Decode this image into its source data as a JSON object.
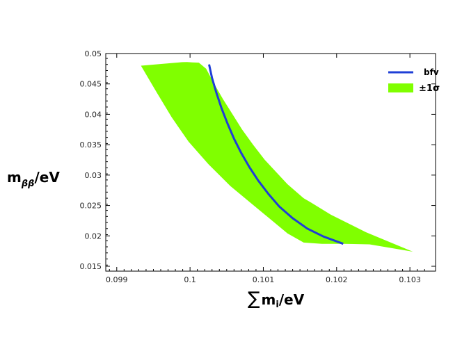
{
  "chart_data": {
    "type": "area",
    "title": "",
    "xlabel": {
      "prefix": "∑",
      "main": "m",
      "subscript": "i",
      "suffix": "/eV"
    },
    "ylabel": {
      "main": "m",
      "subscript": "ββ",
      "suffix": "/eV"
    },
    "xlim": [
      0.09885,
      0.10335
    ],
    "ylim": [
      0.0142,
      0.05
    ],
    "xticks": [
      0.099,
      0.1,
      0.101,
      0.102,
      0.103
    ],
    "xtick_labels": [
      "0.099",
      "0.1",
      "0.101",
      "0.102",
      "0.103"
    ],
    "yticks": [
      0.015,
      0.02,
      0.025,
      0.03,
      0.035,
      0.04,
      0.045,
      0.05
    ],
    "ytick_labels": [
      "0.015",
      "0.02",
      "0.025",
      "0.03",
      "0.035",
      "0.04",
      "0.045",
      "0.05"
    ],
    "grid": false,
    "legend_position": "top-right",
    "series": [
      {
        "name": "bfv",
        "kind": "line",
        "color": "#1f3fd6",
        "x": [
          0.10026,
          0.1003,
          0.10036,
          0.10043,
          0.10051,
          0.1006,
          0.1007,
          0.10081,
          0.10093,
          0.10107,
          0.10122,
          0.1014,
          0.1016,
          0.10182,
          0.10209
        ],
        "y": [
          0.0482,
          0.046,
          0.0435,
          0.041,
          0.0385,
          0.036,
          0.0336,
          0.0313,
          0.0291,
          0.0269,
          0.0248,
          0.0229,
          0.0212,
          0.0199,
          0.0187
        ]
      },
      {
        "name": "±1σ",
        "kind": "band",
        "color": "#80ff00",
        "x": [
          0.09933,
          0.09955,
          0.09975,
          0.09998,
          0.10025,
          0.10055,
          0.10087,
          0.10112,
          0.10133,
          0.10155,
          0.1018,
          0.10209,
          0.10245,
          0.10304,
          0.1024,
          0.10192,
          0.10165,
          0.10155,
          0.10133,
          0.10102,
          0.10086,
          0.10071,
          0.10058,
          0.10045,
          0.10033,
          0.10022,
          0.10012,
          0.10003,
          0.09996,
          0.0999,
          0.09988,
          0.09962,
          0.09933
        ],
        "y": [
          0.048,
          0.0435,
          0.0395,
          0.0355,
          0.0318,
          0.0282,
          0.025,
          0.0225,
          0.0204,
          0.0189,
          0.0187,
          0.0187,
          0.0186,
          0.0174,
          0.0206,
          0.0235,
          0.0255,
          0.0262,
          0.0285,
          0.0325,
          0.035,
          0.0375,
          0.04,
          0.0425,
          0.045,
          0.0475,
          0.0485,
          0.04855,
          0.0486,
          0.04858,
          0.04857,
          0.0483,
          0.048
        ]
      }
    ]
  }
}
